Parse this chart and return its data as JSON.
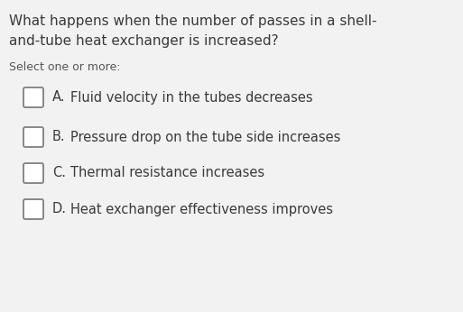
{
  "background_color": "#f2f2f2",
  "question_line1": "What happens when the number of passes in a shell-",
  "question_line2": "and-tube heat exchanger is increased?",
  "instruction": "Select one or more:",
  "options": [
    {
      "label": "A.",
      "text": "Fluid velocity in the tubes decreases"
    },
    {
      "label": "B.",
      "text": "Pressure drop on the tube side increases"
    },
    {
      "label": "C.",
      "text": "Thermal resistance increases"
    },
    {
      "label": "D.",
      "text": "Heat exchanger effectiveness improves"
    }
  ],
  "question_fontsize": 11.0,
  "instruction_fontsize": 9.0,
  "option_fontsize": 10.5,
  "text_color": "#3a3a3a",
  "instruction_color": "#555555",
  "checkbox_edge_color": "#888888",
  "checkbox_face_color": "#ffffff"
}
